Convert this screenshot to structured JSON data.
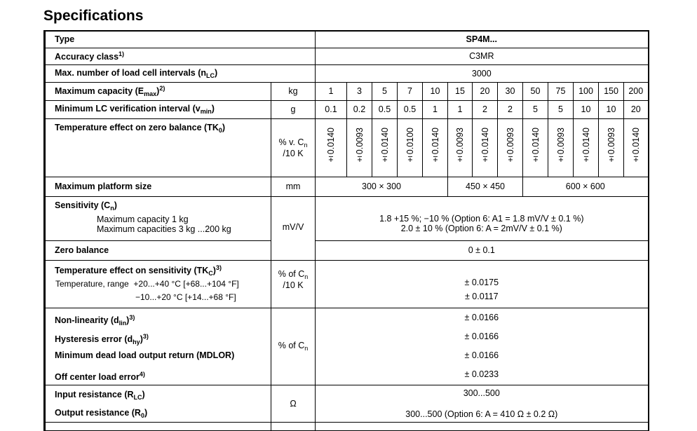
{
  "title": "Specifications",
  "rows": {
    "type": {
      "label": "Type",
      "value": "SP4M..."
    },
    "accuracy": {
      "label": "Accuracy class",
      "sup": "1)",
      "value": "C3MR"
    },
    "intervals": {
      "label": "Max. number of load cell intervals (n",
      "sub": "LC",
      "after": ")",
      "value": "3000"
    },
    "capacity": {
      "label": "Maximum capacity (E",
      "sub": "max",
      "after": ")",
      "sup": "2)",
      "unit": "kg",
      "values": [
        "1",
        "3",
        "5",
        "7",
        "10",
        "15",
        "20",
        "30",
        "50",
        "75",
        "100",
        "150",
        "200"
      ]
    },
    "vmin": {
      "label": "Minimum LC verification interval (v",
      "sub": "min",
      "after": ")",
      "unit": "g",
      "values": [
        "0.1",
        "0.2",
        "0.5",
        "0.5",
        "1",
        "1",
        "2",
        "2",
        "5",
        "5",
        "10",
        "10",
        "20"
      ]
    },
    "tk0": {
      "label": "Temperature effect on zero balance (TK",
      "sub": "0",
      "after": ")",
      "unit_a": "% v. C",
      "unit_sub": "n",
      "unit_b": "/10 K",
      "values": [
        "±0.0140",
        "±0.0093",
        "±0.0140",
        "±0.0100",
        "±0.0140",
        "±0.0093",
        "±0.0140",
        "±0.0093",
        "±0.0140",
        "±0.0093",
        "±0.0140",
        "±0.0093",
        "±0.0140"
      ]
    },
    "platform": {
      "label": "Maximum platform size",
      "unit": "mm",
      "values": [
        "300 × 300",
        "450 × 450",
        "600 × 600"
      ]
    },
    "sensitivity": {
      "label": "Sensitivity (C",
      "sub": "n",
      "after": ")",
      "line1": "Maximum capacity 1 kg",
      "line2": "Maximum capacities 3 kg ...200 kg",
      "unit": "mV/V",
      "value1": "1.8 +15 %; −10 % (Option 6: A1 = 1.8 mV/V ± 0.1 %)",
      "value2": "2.0 ± 10 % (Option 6: A = 2mV/V ± 0.1 %)"
    },
    "zero": {
      "label": "Zero balance",
      "value": "0 ± 0.1"
    },
    "tkc": {
      "label": "Temperature effect on sensitivity (TK",
      "sub": "C",
      "after": ")",
      "sup": "3)",
      "line1_a": "Temperature, range",
      "line1_b": "+20...+40 °C [+68...+104 °F]",
      "line2": "−10...+20 °C [+14...+68 °F]",
      "unit_a": "% of C",
      "unit_sub": "n",
      "unit_b": "/10 K",
      "value1": "± 0.0175",
      "value2": "± 0.0117"
    },
    "group": {
      "unit_a": "% of C",
      "unit_sub": "n",
      "items": [
        {
          "label": "Non-linearity (d",
          "sub": "lin",
          "after": ")",
          "sup": "3)",
          "value": "± 0.0166"
        },
        {
          "label": "Hysteresis error (d",
          "sub": "hy",
          "after": ")",
          "sup": "3)",
          "value": "± 0.0166"
        },
        {
          "label": "Minimum dead load output return (MDLOR)",
          "value": "± 0.0166"
        },
        {
          "label": "Off center load error",
          "sup": "4)",
          "value": "± 0.0233"
        }
      ]
    },
    "resistance": {
      "unit": "Ω",
      "items": [
        {
          "label": "Input resistance (R",
          "sub": "LC",
          "after": ")",
          "value": "300...500"
        },
        {
          "label": "Output resistance (R",
          "sub": "0",
          "after": ")",
          "value": "300...500 (Option 6: A = 410 Ω ± 0.2 Ω)"
        }
      ]
    }
  }
}
